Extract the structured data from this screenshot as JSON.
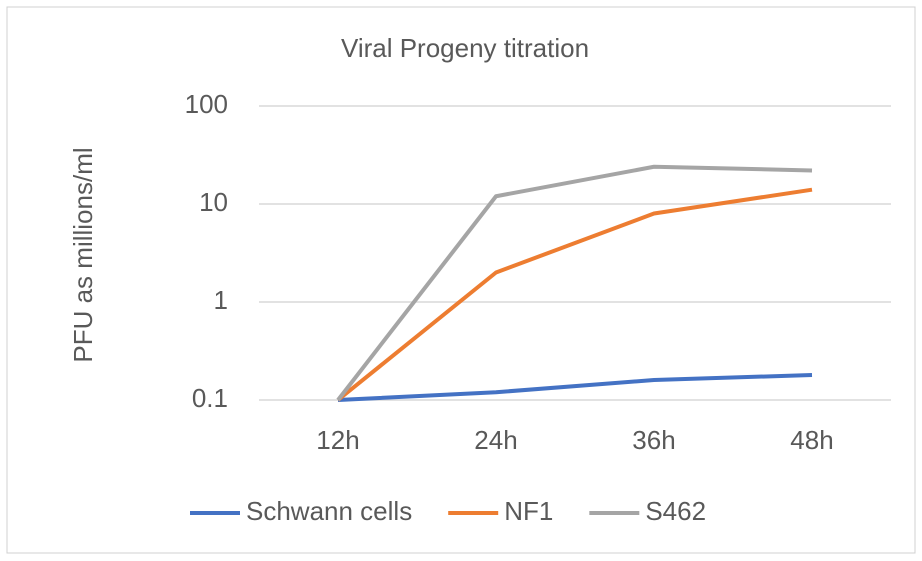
{
  "chart_data": {
    "type": "line",
    "title": "Viral Progeny titration",
    "y_label": "PFU as millions/ml",
    "categories": [
      "12h",
      "24h",
      "36h",
      "48h"
    ],
    "series": [
      {
        "name": "Schwann cells",
        "color": "#4472c4",
        "values": [
          0.1,
          0.12,
          0.16,
          0.18
        ]
      },
      {
        "name": "NF1",
        "color": "#ed7d31",
        "values": [
          0.1,
          2,
          8,
          14
        ]
      },
      {
        "name": "S462",
        "color": "#a5a5a5",
        "values": [
          0.1,
          12,
          24,
          22
        ]
      }
    ],
    "ylim": [
      0.1,
      100
    ],
    "yticks": [
      0.1,
      1,
      10,
      100
    ],
    "log_y": true,
    "grid": true,
    "legend": "bottom"
  }
}
